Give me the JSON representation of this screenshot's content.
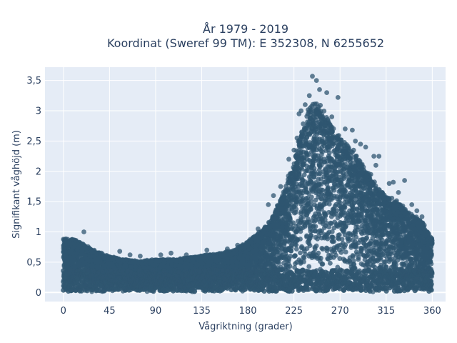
{
  "chart_data": {
    "type": "scatter",
    "title_lines": [
      "År 1979 - 2019",
      "Koordinat (Sweref 99 TM): E 352308, N 6255652"
    ],
    "xlabel": "Vågriktning (grader)",
    "ylabel": "Signifikant våghöjd (m)",
    "xlim": [
      -18,
      373
    ],
    "ylim": [
      -0.15,
      3.72
    ],
    "x_ticks": [
      0,
      45,
      90,
      135,
      180,
      225,
      270,
      315,
      360
    ],
    "x_tick_labels": [
      "0",
      "45",
      "90",
      "135",
      "180",
      "225",
      "270",
      "315",
      "360"
    ],
    "y_ticks": [
      0,
      0.5,
      1,
      1.5,
      2,
      2.5,
      3,
      3.5
    ],
    "y_tick_labels": [
      "0",
      "0,5",
      "1",
      "1,5",
      "2",
      "2,5",
      "3",
      "3,5"
    ],
    "grid": true,
    "legend": "none",
    "marker_color": "#2f5670",
    "plot_background": "#e5ecf6",
    "envelope": [
      {
        "x": 0,
        "y": 0.9
      },
      {
        "x": 10,
        "y": 0.9
      },
      {
        "x": 20,
        "y": 0.8
      },
      {
        "x": 30,
        "y": 0.7
      },
      {
        "x": 45,
        "y": 0.6
      },
      {
        "x": 60,
        "y": 0.55
      },
      {
        "x": 75,
        "y": 0.52
      },
      {
        "x": 90,
        "y": 0.55
      },
      {
        "x": 105,
        "y": 0.55
      },
      {
        "x": 120,
        "y": 0.58
      },
      {
        "x": 135,
        "y": 0.62
      },
      {
        "x": 150,
        "y": 0.65
      },
      {
        "x": 165,
        "y": 0.7
      },
      {
        "x": 180,
        "y": 0.85
      },
      {
        "x": 195,
        "y": 1.05
      },
      {
        "x": 205,
        "y": 1.3
      },
      {
        "x": 215,
        "y": 1.7
      },
      {
        "x": 225,
        "y": 2.2
      },
      {
        "x": 232,
        "y": 2.7
      },
      {
        "x": 240,
        "y": 3.1
      },
      {
        "x": 247,
        "y": 3.2
      },
      {
        "x": 255,
        "y": 3.0
      },
      {
        "x": 262,
        "y": 2.8
      },
      {
        "x": 270,
        "y": 2.6
      },
      {
        "x": 280,
        "y": 2.45
      },
      {
        "x": 290,
        "y": 2.2
      },
      {
        "x": 300,
        "y": 1.9
      },
      {
        "x": 310,
        "y": 1.7
      },
      {
        "x": 320,
        "y": 1.6
      },
      {
        "x": 330,
        "y": 1.45
      },
      {
        "x": 340,
        "y": 1.3
      },
      {
        "x": 350,
        "y": 1.2
      },
      {
        "x": 360,
        "y": 0.9
      }
    ],
    "outliers": [
      {
        "x": 20,
        "y": 1.0
      },
      {
        "x": 243,
        "y": 3.57
      },
      {
        "x": 247,
        "y": 3.5
      },
      {
        "x": 250,
        "y": 3.35
      },
      {
        "x": 257,
        "y": 3.3
      },
      {
        "x": 240,
        "y": 3.25
      },
      {
        "x": 268,
        "y": 3.22
      },
      {
        "x": 236,
        "y": 3.1
      },
      {
        "x": 232,
        "y": 3.0
      },
      {
        "x": 230,
        "y": 2.95
      },
      {
        "x": 262,
        "y": 2.9
      },
      {
        "x": 275,
        "y": 2.7
      },
      {
        "x": 282,
        "y": 2.68
      },
      {
        "x": 285,
        "y": 2.5
      },
      {
        "x": 290,
        "y": 2.45
      },
      {
        "x": 295,
        "y": 2.4
      },
      {
        "x": 303,
        "y": 2.25
      },
      {
        "x": 308,
        "y": 2.25
      },
      {
        "x": 305,
        "y": 2.1
      },
      {
        "x": 300,
        "y": 1.95
      },
      {
        "x": 318,
        "y": 1.8
      },
      {
        "x": 322,
        "y": 1.82
      },
      {
        "x": 333,
        "y": 1.85
      },
      {
        "x": 327,
        "y": 1.65
      },
      {
        "x": 340,
        "y": 1.45
      },
      {
        "x": 345,
        "y": 1.35
      },
      {
        "x": 350,
        "y": 1.25
      },
      {
        "x": 355,
        "y": 1.0
      },
      {
        "x": 212,
        "y": 1.75
      },
      {
        "x": 205,
        "y": 1.6
      },
      {
        "x": 200,
        "y": 1.45
      },
      {
        "x": 190,
        "y": 1.05
      },
      {
        "x": 160,
        "y": 0.72
      },
      {
        "x": 140,
        "y": 0.7
      },
      {
        "x": 105,
        "y": 0.65
      },
      {
        "x": 55,
        "y": 0.68
      },
      {
        "x": 65,
        "y": 0.62
      },
      {
        "x": 75,
        "y": 0.6
      },
      {
        "x": 95,
        "y": 0.62
      },
      {
        "x": 120,
        "y": 0.62
      },
      {
        "x": 170,
        "y": 0.78
      },
      {
        "x": 220,
        "y": 2.2
      },
      {
        "x": 225,
        "y": 2.35
      },
      {
        "x": 228,
        "y": 2.55
      }
    ]
  }
}
